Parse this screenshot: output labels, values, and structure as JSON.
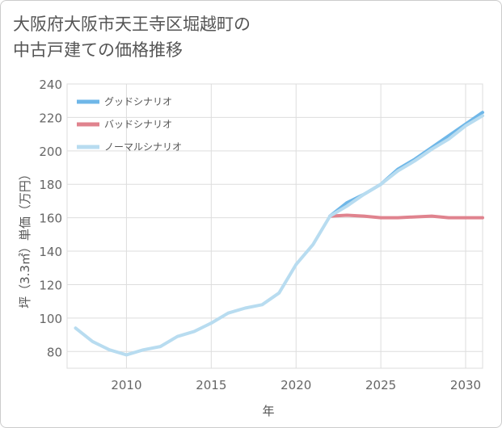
{
  "title": "大阪府大阪市天王寺区堀越町の\n中古戸建ての価格推移",
  "chart_data": {
    "type": "line",
    "title": "大阪府大阪市天王寺区堀越町の中古戸建ての価格推移",
    "xlabel": "年",
    "ylabel": "坪（3.3㎡）単価（万円）",
    "xlim": [
      2006.5,
      2031
    ],
    "ylim": [
      70,
      240
    ],
    "xticks": [
      2010,
      2015,
      2020,
      2025,
      2030
    ],
    "yticks": [
      80,
      100,
      120,
      140,
      160,
      180,
      200,
      220,
      240
    ],
    "grid": true,
    "legend_position": "top-left",
    "series": [
      {
        "name": "グッドシナリオ",
        "color": "#6fb7e8",
        "x": [
          2022,
          2023,
          2024,
          2025,
          2026,
          2027,
          2028,
          2029,
          2030,
          2031
        ],
        "y": [
          161,
          169,
          174,
          180,
          189,
          195,
          202,
          209,
          216,
          223
        ]
      },
      {
        "name": "バッドシナリオ",
        "color": "#e0838e",
        "x": [
          2022,
          2023,
          2024,
          2025,
          2026,
          2027,
          2028,
          2029,
          2030,
          2031
        ],
        "y": [
          161,
          161.5,
          161,
          160,
          160,
          160.5,
          161,
          160,
          160,
          160
        ]
      },
      {
        "name": "ノーマルシナリオ",
        "color": "#b8dcf0",
        "x": [
          2007,
          2008,
          2009,
          2010,
          2011,
          2012,
          2013,
          2014,
          2015,
          2016,
          2017,
          2018,
          2019,
          2020,
          2021,
          2022,
          2023,
          2024,
          2025,
          2026,
          2027,
          2028,
          2029,
          2030,
          2031
        ],
        "y": [
          94,
          86,
          81,
          78,
          81,
          83,
          89,
          92,
          97,
          103,
          106,
          108,
          115,
          132,
          144,
          161,
          167,
          174,
          180,
          188,
          194,
          201,
          207,
          215,
          221
        ]
      }
    ]
  }
}
